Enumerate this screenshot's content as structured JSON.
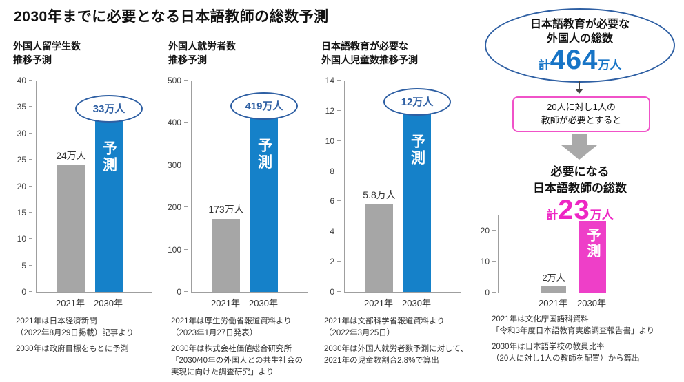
{
  "page_title": "2030年までに必要となる日本語教師の総数予測",
  "colors": {
    "bar_gray": "#a6a6a6",
    "bar_blue": "#1581c9",
    "bar_magenta": "#ee3fc8",
    "oval_border_blue": "#2e5fa3",
    "ratio_box_border_magenta": "#f052c8",
    "accent_blue_text": "#1774c6",
    "accent_magenta_text": "#ee26c4",
    "arrow_gray": "#a9a9a9"
  },
  "chart_data": [
    {
      "type": "bar",
      "title_lines": [
        "外国人留学生数",
        "推移予測"
      ],
      "categories": [
        "2021年",
        "2030年"
      ],
      "values": [
        24,
        33
      ],
      "value_labels": [
        "24万人",
        "33万人"
      ],
      "ylim": [
        0,
        40
      ],
      "yticks": [
        0,
        5,
        10,
        15,
        20,
        25,
        30,
        35,
        40
      ],
      "forecast_label": "予測",
      "legend_position": "none",
      "grid": false,
      "notes": [
        [
          "2021年は日本経済新聞",
          "（2022年8月29日掲載）記事より"
        ],
        [
          "2030年は政府目標をもとに予測"
        ]
      ]
    },
    {
      "type": "bar",
      "title_lines": [
        "外国人就労者数",
        "推移予測"
      ],
      "categories": [
        "2021年",
        "2030年"
      ],
      "values": [
        173,
        419
      ],
      "value_labels": [
        "173万人",
        "419万人"
      ],
      "ylim": [
        0,
        500
      ],
      "yticks": [
        0,
        100,
        200,
        300,
        400,
        500
      ],
      "forecast_label": "予測",
      "legend_position": "none",
      "grid": false,
      "notes": [
        [
          "2021年は厚生労働省報道資料より",
          "（2023年1月27日発表）"
        ],
        [
          "2030年は株式会社価値総合研究所",
          "「2030/40年の外国人との共生社会の",
          "実現に向けた調査研究」より"
        ]
      ]
    },
    {
      "type": "bar",
      "title_lines": [
        "日本語教育が必要な",
        "外国人児童数推移予測"
      ],
      "categories": [
        "2021年",
        "2030年"
      ],
      "values": [
        5.8,
        12
      ],
      "value_labels": [
        "5.8万人",
        "12万人"
      ],
      "ylim": [
        0,
        14
      ],
      "yticks": [
        0,
        2,
        4,
        6,
        8,
        10,
        12,
        14
      ],
      "forecast_label": "予測",
      "legend_position": "none",
      "grid": false,
      "notes": [
        [
          "2021年は文部科学省報道資料より",
          "（2022年3月25日）"
        ],
        [
          "2030年は外国人就労者数予測に対して、",
          "2021年の児童数割合2.8%で算出"
        ]
      ]
    },
    {
      "type": "bar",
      "title_lines": [],
      "categories": [
        "2021年",
        "2030年"
      ],
      "values": [
        2,
        23
      ],
      "value_labels": [
        "2万人",
        ""
      ],
      "ylim": [
        0,
        25
      ],
      "yticks": [
        0,
        10,
        20
      ],
      "forecast_label": "予測",
      "legend_position": "none",
      "grid": false,
      "notes": [
        [
          "2021年は文化庁国語科資料",
          "「令和3年度日本語教育実態調査報告書」より"
        ],
        [
          "2030年は日本語学校の教員比率",
          "（20人に対し1人の教師を配置）から算出"
        ]
      ]
    }
  ],
  "summary": {
    "total_bubble": {
      "line1": "日本語教育が必要な",
      "line2": "外国人の総数",
      "prefix": "計",
      "value": "464",
      "unit": "万人"
    },
    "ratio_box": {
      "line1": "20人に対し1人の",
      "line2": "教師が必要とすると"
    },
    "result": {
      "line1": "必要になる",
      "line2": "日本語教師の総数",
      "prefix": "計",
      "value": "23",
      "unit": "万人"
    }
  }
}
